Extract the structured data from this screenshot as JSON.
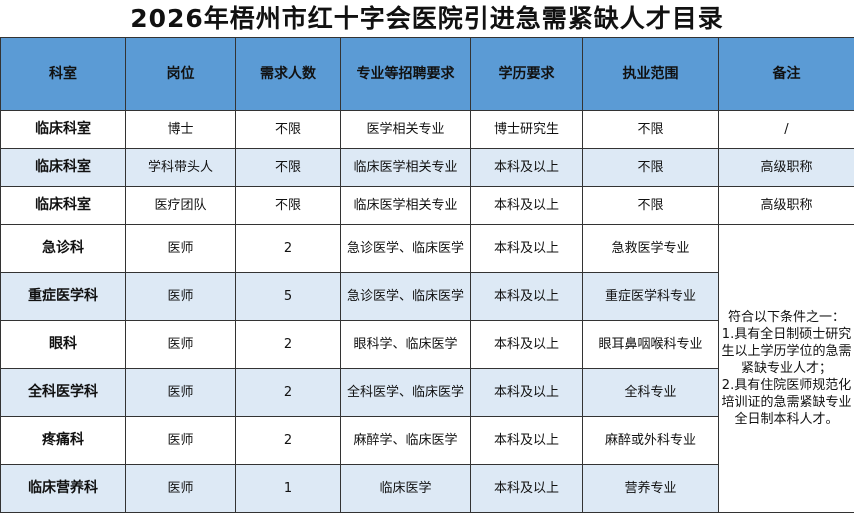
{
  "title": "2026年梧州市红十字会医院引进急需紧缺人才目录",
  "colors": {
    "header_bg": "#5b9bd5",
    "alt_row_bg": "#dde9f5"
  },
  "headers": [
    "科室",
    "岗位",
    "需求人数",
    "专业等招聘要求",
    "学历要求",
    "执业范围",
    "备注"
  ],
  "rows": [
    [
      "临床科室",
      "博士",
      "不限",
      "医学相关专业",
      "博士研究生",
      "不限",
      "/"
    ],
    [
      "临床科室",
      "学科带头人",
      "不限",
      "临床医学相关专业",
      "本科及以上",
      "不限",
      "高级职称"
    ],
    [
      "临床科室",
      "医疗团队",
      "不限",
      "临床医学相关专业",
      "本科及以上",
      "不限",
      "高级职称"
    ],
    [
      "急诊科",
      "医师",
      "2",
      "急诊医学、临床医学",
      "本科及以上",
      "急救医学专业"
    ],
    [
      "重症医学科",
      "医师",
      "5",
      "急诊医学、临床医学",
      "本科及以上",
      "重症医学科专业"
    ],
    [
      "眼科",
      "医师",
      "2",
      "眼科学、临床医学",
      "本科及以上",
      "眼耳鼻咽喉科专业"
    ],
    [
      "全科医学科",
      "医师",
      "2",
      "全科医学、临床医学",
      "本科及以上",
      "全科专业"
    ],
    [
      "疼痛科",
      "医师",
      "2",
      "麻醉学、临床医学",
      "本科及以上",
      "麻醉或外科专业"
    ],
    [
      "临床营养科",
      "医师",
      "1",
      "临床医学",
      "本科及以上",
      "营养专业"
    ]
  ],
  "shared_note": "符合以下条件之一：\n    1.具有全日制硕士研究生以上学历学位的急需紧缺专业人才；\n    2.具有住院医师规范化培训证的急需紧缺专业全日制本科人才。"
}
